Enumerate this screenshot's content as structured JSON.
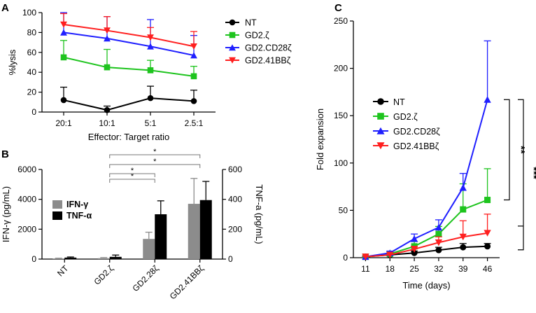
{
  "chart_data": [
    {
      "panel": "A",
      "type": "line",
      "xlabel": "Effector: Target ratio",
      "ylabel": "%lysis",
      "categories": [
        "20:1",
        "10:1",
        "5:1",
        "2.5:1"
      ],
      "ylim": [
        0,
        100
      ],
      "yticks": [
        0,
        20,
        40,
        60,
        80,
        100
      ],
      "legend_position": "right",
      "series": [
        {
          "name": "NT",
          "color": "#000000",
          "marker": "circle",
          "values": [
            12,
            2,
            14,
            11
          ],
          "errors": [
            13,
            4,
            12,
            11
          ]
        },
        {
          "name": "GD2.ζ",
          "color": "#1ec41e",
          "marker": "square",
          "values": [
            55,
            45,
            42,
            36
          ],
          "errors": [
            17,
            18,
            10,
            10
          ]
        },
        {
          "name": "GD2.CD28ζ",
          "color": "#1f1fff",
          "marker": "triangle-up",
          "values": [
            80,
            74,
            66,
            57
          ],
          "errors": [
            20,
            22,
            27,
            20
          ]
        },
        {
          "name": "GD2.41BBζ",
          "color": "#ff1f1f",
          "marker": "triangle-down",
          "values": [
            88,
            82,
            75,
            66
          ],
          "errors": [
            11,
            14,
            10,
            15
          ]
        }
      ]
    },
    {
      "panel": "B",
      "type": "bar",
      "categories": [
        "NT",
        "GD2.ζ",
        "GD2.28ζ",
        "GD2.41BBζ"
      ],
      "ylabel": "IFN-γ (pg/mL)",
      "ylabel_right": "TNF-a (pg/mL)",
      "ylim": [
        0,
        6000
      ],
      "yticks": [
        0,
        2000,
        4000,
        6000
      ],
      "ylim_right": [
        0,
        600
      ],
      "yticks_right": [
        0,
        200,
        400,
        600
      ],
      "legend_position": "left",
      "series": [
        {
          "name": "IFN-γ",
          "axis": "left",
          "color": "#8c8c8c",
          "values": [
            30,
            60,
            1350,
            3700
          ],
          "errors": [
            30,
            40,
            450,
            1700
          ]
        },
        {
          "name": "TNF-α",
          "axis": "right",
          "color": "#000000",
          "values": [
            10,
            15,
            300,
            395
          ],
          "errors": [
            4,
            12,
            90,
            125
          ]
        }
      ],
      "significance": [
        {
          "from": "GD2.ζ",
          "to": "GD2.28ζ",
          "label": "*"
        },
        {
          "from": "GD2.ζ",
          "to": "GD2.28ζ",
          "label": "*"
        },
        {
          "from": "GD2.ζ",
          "to": "GD2.41BBζ",
          "label": "*"
        },
        {
          "from": "GD2.ζ",
          "to": "GD2.41BBζ",
          "label": "*"
        }
      ]
    },
    {
      "panel": "C",
      "type": "line",
      "xlabel": "Time (days)",
      "ylabel": "Fold expansion",
      "x": [
        11,
        18,
        25,
        32,
        39,
        46
      ],
      "ylim": [
        0,
        250
      ],
      "yticks": [
        0,
        50,
        100,
        150,
        200,
        250
      ],
      "legend_position": "top-left",
      "series": [
        {
          "name": "NT",
          "color": "#000000",
          "marker": "circle",
          "values": [
            1,
            3,
            5,
            8,
            11,
            12
          ],
          "errors": [
            0.5,
            1,
            2,
            3,
            4,
            3
          ]
        },
        {
          "name": "GD2.ζ",
          "color": "#1ec41e",
          "marker": "square",
          "values": [
            1,
            4,
            12,
            25,
            51,
            61
          ],
          "errors": [
            0.5,
            2,
            5,
            8,
            27,
            33
          ]
        },
        {
          "name": "GD2.CD28ζ",
          "color": "#1f1fff",
          "marker": "triangle-up",
          "values": [
            1,
            5,
            20,
            32,
            74,
            167
          ],
          "errors": [
            0.5,
            2,
            5,
            8,
            15,
            62
          ]
        },
        {
          "name": "GD2.41BBζ",
          "color": "#ff1f1f",
          "marker": "triangle-down",
          "values": [
            1,
            3,
            9,
            16,
            22,
            26
          ],
          "errors": [
            0.5,
            1,
            3,
            6,
            17,
            20
          ]
        }
      ],
      "significance": [
        {
          "label": "**",
          "between": [
            "GD2.CD28ζ",
            "GD2.ζ"
          ]
        },
        {
          "label": "***",
          "between": [
            "GD2.CD28ζ",
            "NT"
          ]
        }
      ]
    }
  ],
  "panel_labels": {
    "a": "A",
    "b": "B",
    "c": "C"
  }
}
